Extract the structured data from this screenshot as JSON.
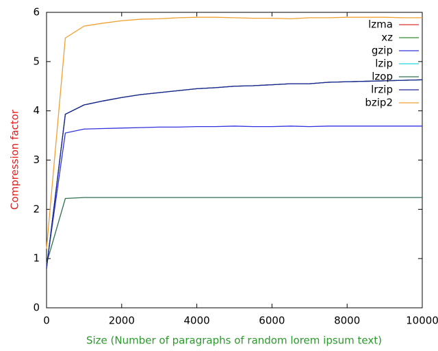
{
  "chart_data": {
    "type": "line",
    "xlabel": "Size (Number of paragraphs of random lorem ipsum text)",
    "ylabel": "Compression factor",
    "x": [
      0,
      500,
      1000,
      1500,
      2000,
      2500,
      3000,
      3500,
      4000,
      4500,
      5000,
      5500,
      6000,
      6500,
      7000,
      7500,
      8000,
      8500,
      9000,
      9500,
      10000
    ],
    "series": [
      {
        "name": "lzma",
        "color": "#e03030",
        "values": [
          0.8,
          3.93,
          4.12,
          4.2,
          4.27,
          4.33,
          4.37,
          4.41,
          4.45,
          4.47,
          4.5,
          4.51,
          4.53,
          4.55,
          4.55,
          4.58,
          4.59,
          4.6,
          4.61,
          4.62,
          4.63
        ]
      },
      {
        "name": "xz",
        "color": "#2e8b2e",
        "values": [
          0.8,
          3.93,
          4.12,
          4.2,
          4.27,
          4.33,
          4.37,
          4.41,
          4.45,
          4.47,
          4.5,
          4.51,
          4.53,
          4.55,
          4.55,
          4.58,
          4.59,
          4.6,
          4.61,
          4.62,
          4.63
        ]
      },
      {
        "name": "gzip",
        "color": "#3030e0",
        "values": [
          0.85,
          3.55,
          3.63,
          3.64,
          3.65,
          3.66,
          3.67,
          3.67,
          3.68,
          3.68,
          3.69,
          3.68,
          3.68,
          3.69,
          3.68,
          3.69,
          3.69,
          3.69,
          3.69,
          3.69,
          3.69
        ]
      },
      {
        "name": "lzip",
        "color": "#20d8e0",
        "values": [
          0.8,
          3.93,
          4.12,
          4.2,
          4.27,
          4.33,
          4.37,
          4.41,
          4.45,
          4.47,
          4.5,
          4.51,
          4.53,
          4.55,
          4.55,
          4.58,
          4.59,
          4.6,
          4.61,
          4.62,
          4.63
        ]
      },
      {
        "name": "lzop",
        "color": "#2e7050",
        "values": [
          0.9,
          2.22,
          2.24,
          2.24,
          2.24,
          2.24,
          2.24,
          2.24,
          2.24,
          2.24,
          2.24,
          2.24,
          2.24,
          2.24,
          2.24,
          2.24,
          2.24,
          2.24,
          2.24,
          2.24,
          2.24
        ]
      },
      {
        "name": "lrzip",
        "color": "#202090",
        "values": [
          0.8,
          3.93,
          4.12,
          4.2,
          4.27,
          4.33,
          4.37,
          4.41,
          4.45,
          4.47,
          4.5,
          4.51,
          4.53,
          4.55,
          4.55,
          4.58,
          4.59,
          4.6,
          4.61,
          4.62,
          4.63
        ]
      },
      {
        "name": "bzip2",
        "color": "#f0a030",
        "values": [
          1.2,
          5.48,
          5.72,
          5.78,
          5.83,
          5.86,
          5.87,
          5.89,
          5.9,
          5.9,
          5.89,
          5.88,
          5.88,
          5.87,
          5.89,
          5.89,
          5.9,
          5.9,
          5.9,
          5.89,
          5.89
        ]
      }
    ],
    "xlim": [
      0,
      10000
    ],
    "xticks": [
      0,
      2000,
      4000,
      6000,
      8000,
      10000
    ],
    "ylim": [
      0,
      6
    ],
    "yticks": [
      0,
      1,
      2,
      3,
      4,
      5,
      6
    ],
    "xlabel_color": "#2a9a2a",
    "ylabel_color": "#e02020",
    "legend": "upper-right",
    "grid": false
  }
}
